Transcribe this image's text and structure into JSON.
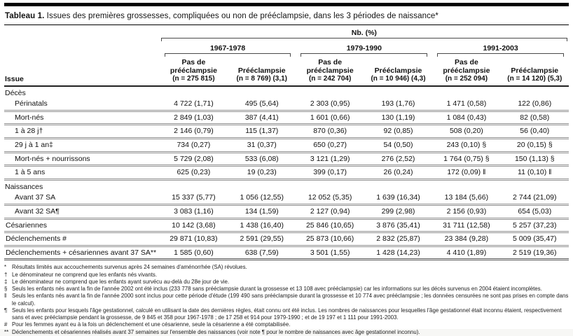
{
  "title": {
    "prefix": "Tableau 1.",
    "text": " Issues des premières grossesses, compliquées ou non de prééclampsie, dans les 3 périodes de naissance*"
  },
  "table": {
    "nb_header": "Nb. (%)",
    "issue_header": "Issue",
    "periods": [
      {
        "label": "1967-1978",
        "columns": [
          {
            "name": "Pas de prééclampsie",
            "n": "(n = 275 815)"
          },
          {
            "name": "Prééclampsie",
            "n": "(n = 8 769) (3,1)"
          }
        ]
      },
      {
        "label": "1979-1990",
        "columns": [
          {
            "name": "Pas de prééclampsie",
            "n": "(n = 242 704)"
          },
          {
            "name": "Prééclampsie",
            "n": "(n = 10 946) (4,3)"
          }
        ]
      },
      {
        "label": "1991-2003",
        "columns": [
          {
            "name": "Pas de prééclampsie",
            "n": "(n = 252 094)"
          },
          {
            "name": "Prééclampsie",
            "n": "(n = 14 120) (5,3)"
          }
        ]
      }
    ],
    "rows": [
      {
        "type": "section",
        "label": "Décès"
      },
      {
        "type": "data",
        "indent": true,
        "label": "Périnatals",
        "values": [
          "4 722 (1,71)",
          "495 (5,64)",
          "2 303 (0,95)",
          "193 (1,76)",
          "1 471 (0,58)",
          "122 (0,86)"
        ]
      },
      {
        "type": "data",
        "indent": true,
        "label": "Mort-nés",
        "values": [
          "2 849 (1,03)",
          "387 (4,41)",
          "1 601 (0,66)",
          "130 (1,19)",
          "1 084 (0,43)",
          "82 (0,58)"
        ]
      },
      {
        "type": "data",
        "indent": true,
        "label": "1 à 28 j†",
        "values": [
          "2 146 (0,79)",
          "115 (1,37)",
          "870 (0,36)",
          "92 (0,85)",
          "508 (0,20)",
          "56 (0,40)"
        ]
      },
      {
        "type": "data",
        "indent": true,
        "label": "29 j à 1 an‡",
        "values": [
          "734 (0,27)",
          "31 (0,37)",
          "650 (0,27)",
          "54 (0,50)",
          "243 (0,10) §",
          "20 (0,15) §"
        ]
      },
      {
        "type": "data",
        "indent": true,
        "label": "Mort-nés + nourrissons",
        "values": [
          "5 729 (2,08)",
          "533 (6,08)",
          "3 121 (1,29)",
          "276 (2,52)",
          "1 764 (0,75) §",
          "150 (1,13) §"
        ]
      },
      {
        "type": "data",
        "indent": true,
        "label": "1 à 5 ans",
        "values": [
          "625 (0,23)",
          "19 (0,23)",
          "399 (0,17)",
          "26 (0,24)",
          "172 (0,09) ‖",
          "11 (0,10) ‖"
        ]
      },
      {
        "type": "section",
        "label": "Naissances"
      },
      {
        "type": "data",
        "indent": true,
        "label": "Avant 37 SA",
        "values": [
          "15 337 (5,77)",
          "1 056 (12,55)",
          "12 052 (5,35)",
          "1 639 (16,34)",
          "13 184 (5,66)",
          "2 744 (21,09)"
        ]
      },
      {
        "type": "data",
        "indent": true,
        "label": "Avant 32 SA¶",
        "values": [
          "3 083 (1,16)",
          "134 (1,59)",
          "2 127 (0,94)",
          "299 (2,98)",
          "2 156 (0,93)",
          "654 (5,03)"
        ]
      },
      {
        "type": "data",
        "indent": false,
        "label": "Césariennes",
        "values": [
          "10 142 (3,68)",
          "1 438 (16,40)",
          "25 846 (10,65)",
          "3 876 (35,41)",
          "31 711 (12,58)",
          "5 257 (37,23)"
        ]
      },
      {
        "type": "data",
        "indent": false,
        "label": "Déclenchements #",
        "values": [
          "29 871 (10,83)",
          "2 591 (29,55)",
          "25 873 (10,66)",
          "2 832 (25,87)",
          "23 384 (9,28)",
          "5 009 (35,47)"
        ]
      },
      {
        "type": "data",
        "indent": false,
        "label": "Déclenchements + césariennes avant 37 SA**",
        "values": [
          "1 585 (0,60)",
          "638 (7,59)",
          "3 501 (1,55)",
          "1 428 (14,23)",
          "4 410 (1,89)",
          "2 519 (19,36)"
        ]
      }
    ]
  },
  "footnotes": [
    {
      "marker": "*",
      "text": "Résultats limités aux accouchements survenus après 24 semaines d'aménorrhée (SA) révolues."
    },
    {
      "marker": "†",
      "text": "Le dénominateur ne comprend que les enfants nés vivants."
    },
    {
      "marker": "‡",
      "text": "Le dénominateur ne comprend que les enfants ayant survécu au-delà du 28e jour de vie."
    },
    {
      "marker": "§",
      "text": "Seuls les enfants nés avant la fin de l'année 2002 ont été inclus (233 778 sans prééclampsie durant la grossesse et 13 108 avec prééclampsie) car les informations sur les décès survenus en 2004 étaient incomplètes."
    },
    {
      "marker": "‖",
      "text": "Seuls les enfants nés avant la fin de l'année 2000 sont inclus pour cette période d'étude (199 490 sans prééclampsie durant la grossesse et 10 774 avec prééclampsie ; les données censurées ne sont pas prises en compte dans le calcul)."
    },
    {
      "marker": "¶",
      "text": "Seuls les enfants pour lesquels l'âge gestationnel, calculé en utilisant la date des dernières règles, était connu ont été inclus. Les nombres de naissances pour lesquelles l'âge gestationnel était inconnu étaient, respectivement sans et avec prééclampsie pendant la grossesse, de 9 845 et 358 pour 1967-1978 ; de 17 258 et 914 pour 1979-1990 ; et de 19 197 et 1 111 pour 1991-2003."
    },
    {
      "marker": "#",
      "text": "Pour les femmes ayant eu à la fois un déclenchement et une césarienne, seule la césarienne a été comptabilisée."
    },
    {
      "marker": "**",
      "text": "Déclenchements et césariennes réalisés avant 37 semaines sur l'ensemble des naissances (voir note ¶ pour le nombre de naissances avec âge gestationnel inconnu)."
    }
  ]
}
